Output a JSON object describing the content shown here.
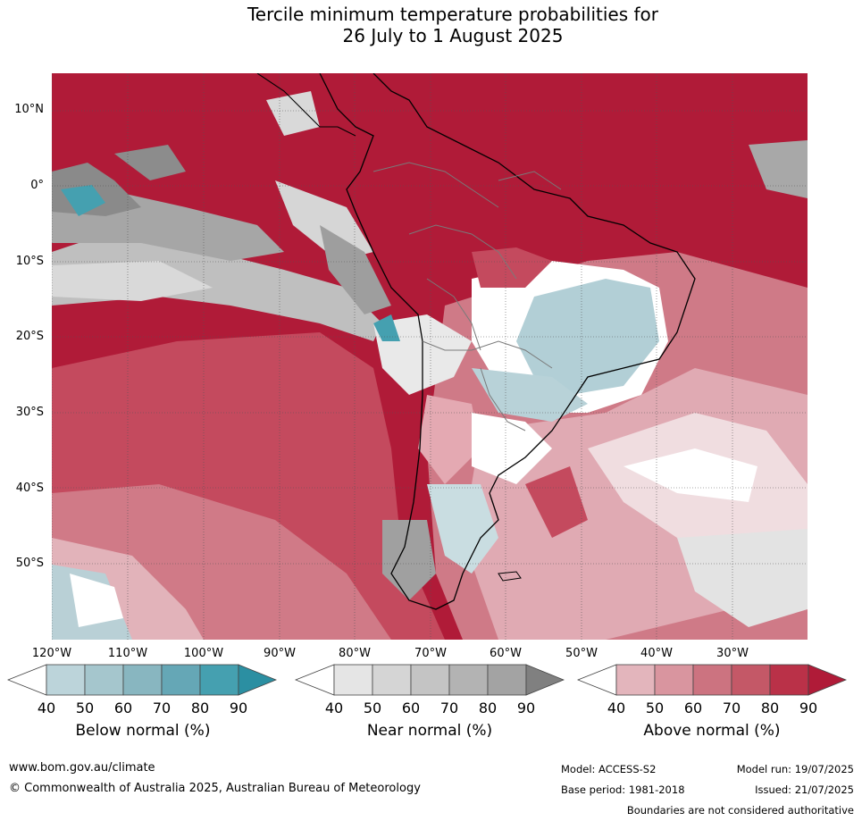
{
  "title": {
    "line1": "Tercile minimum temperature probabilities for",
    "line2": "26 July to 1 August 2025"
  },
  "map": {
    "latitude_labels": [
      "10°N",
      "0°",
      "10°S",
      "20°S",
      "30°S",
      "40°S",
      "50°S"
    ],
    "longitude_labels": [
      "120°W",
      "110°W",
      "100°W",
      "90°W",
      "80°W",
      "70°W",
      "60°W",
      "50°W",
      "40°W",
      "30°W"
    ]
  },
  "colorbars": [
    {
      "name": "Below normal (%)",
      "ticks": [
        "40",
        "50",
        "60",
        "70",
        "80",
        "90"
      ],
      "colors": [
        "#ffffff",
        "#bcd4da",
        "#a5c6cd",
        "#88b6c0",
        "#65a7b6",
        "#45a0b0",
        "#2b8fa2"
      ]
    },
    {
      "name": "Near normal (%)",
      "ticks": [
        "40",
        "50",
        "60",
        "70",
        "80",
        "90"
      ],
      "colors": [
        "#ffffff",
        "#e5e5e5",
        "#d5d5d5",
        "#c4c4c4",
        "#b3b3b3",
        "#a3a3a3",
        "#808080"
      ]
    },
    {
      "name": "Above normal (%)",
      "ticks": [
        "40",
        "50",
        "60",
        "70",
        "80",
        "90"
      ],
      "colors": [
        "#ffffff",
        "#e3b5bc",
        "#d9959f",
        "#cc7380",
        "#c45867",
        "#ba3148",
        "#b01b38"
      ]
    }
  ],
  "footer": {
    "website": "www.bom.gov.au/climate",
    "copyright": "© Commonwealth of Australia 2025, Australian Bureau of Meteorology",
    "model": "Model: ACCESS-S2",
    "model_run": "Model run: 19/07/2025",
    "base_period": "Base period: 1981-2018",
    "issued": "Issued: 21/07/2025",
    "disclaimer": "Boundaries are not considered authoritative"
  }
}
